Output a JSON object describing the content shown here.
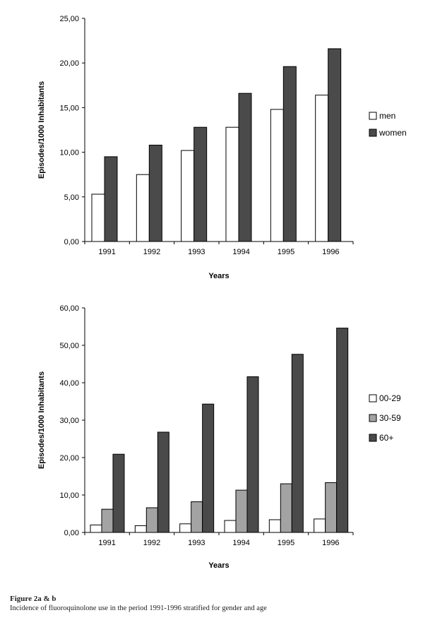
{
  "chart_data": [
    {
      "type": "bar",
      "title": "",
      "xlabel": "Years",
      "ylabel": "Episodes/1000 Inhabitants",
      "categories": [
        "1991",
        "1992",
        "1993",
        "1994",
        "1995",
        "1996"
      ],
      "ylim": [
        0,
        25
      ],
      "yticks": [
        "0,00",
        "5,00",
        "10,00",
        "15,00",
        "20,00",
        "25,00"
      ],
      "grid": false,
      "legend_position": "right",
      "series": [
        {
          "name": "men",
          "color": "#ffffff",
          "values": [
            5.3,
            7.5,
            10.2,
            12.8,
            14.8,
            16.4
          ]
        },
        {
          "name": "women",
          "color": "#4a4a4a",
          "values": [
            9.5,
            10.8,
            12.8,
            16.6,
            19.6,
            21.6
          ]
        }
      ]
    },
    {
      "type": "bar",
      "title": "",
      "xlabel": "Years",
      "ylabel": "Episodes/1000 Inhabitants",
      "categories": [
        "1991",
        "1992",
        "1993",
        "1994",
        "1995",
        "1996"
      ],
      "ylim": [
        0,
        60
      ],
      "yticks": [
        "0,00",
        "10,00",
        "20,00",
        "30,00",
        "40,00",
        "50,00",
        "60,00"
      ],
      "grid": false,
      "legend_position": "right",
      "series": [
        {
          "name": "00-29",
          "color": "#ffffff",
          "values": [
            2.0,
            1.8,
            2.3,
            3.2,
            3.4,
            3.6
          ]
        },
        {
          "name": "30-59",
          "color": "#a3a3a3",
          "values": [
            6.2,
            6.6,
            8.2,
            11.3,
            13.0,
            13.3
          ]
        },
        {
          "name": "60+",
          "color": "#4a4a4a",
          "values": [
            20.9,
            26.8,
            34.3,
            41.6,
            47.6,
            54.6
          ]
        }
      ]
    }
  ],
  "caption": {
    "title": "Figure 2a & b",
    "text": "Incidence of fluoroquinolone use in the period 1991-1996 stratified for gender and age"
  }
}
